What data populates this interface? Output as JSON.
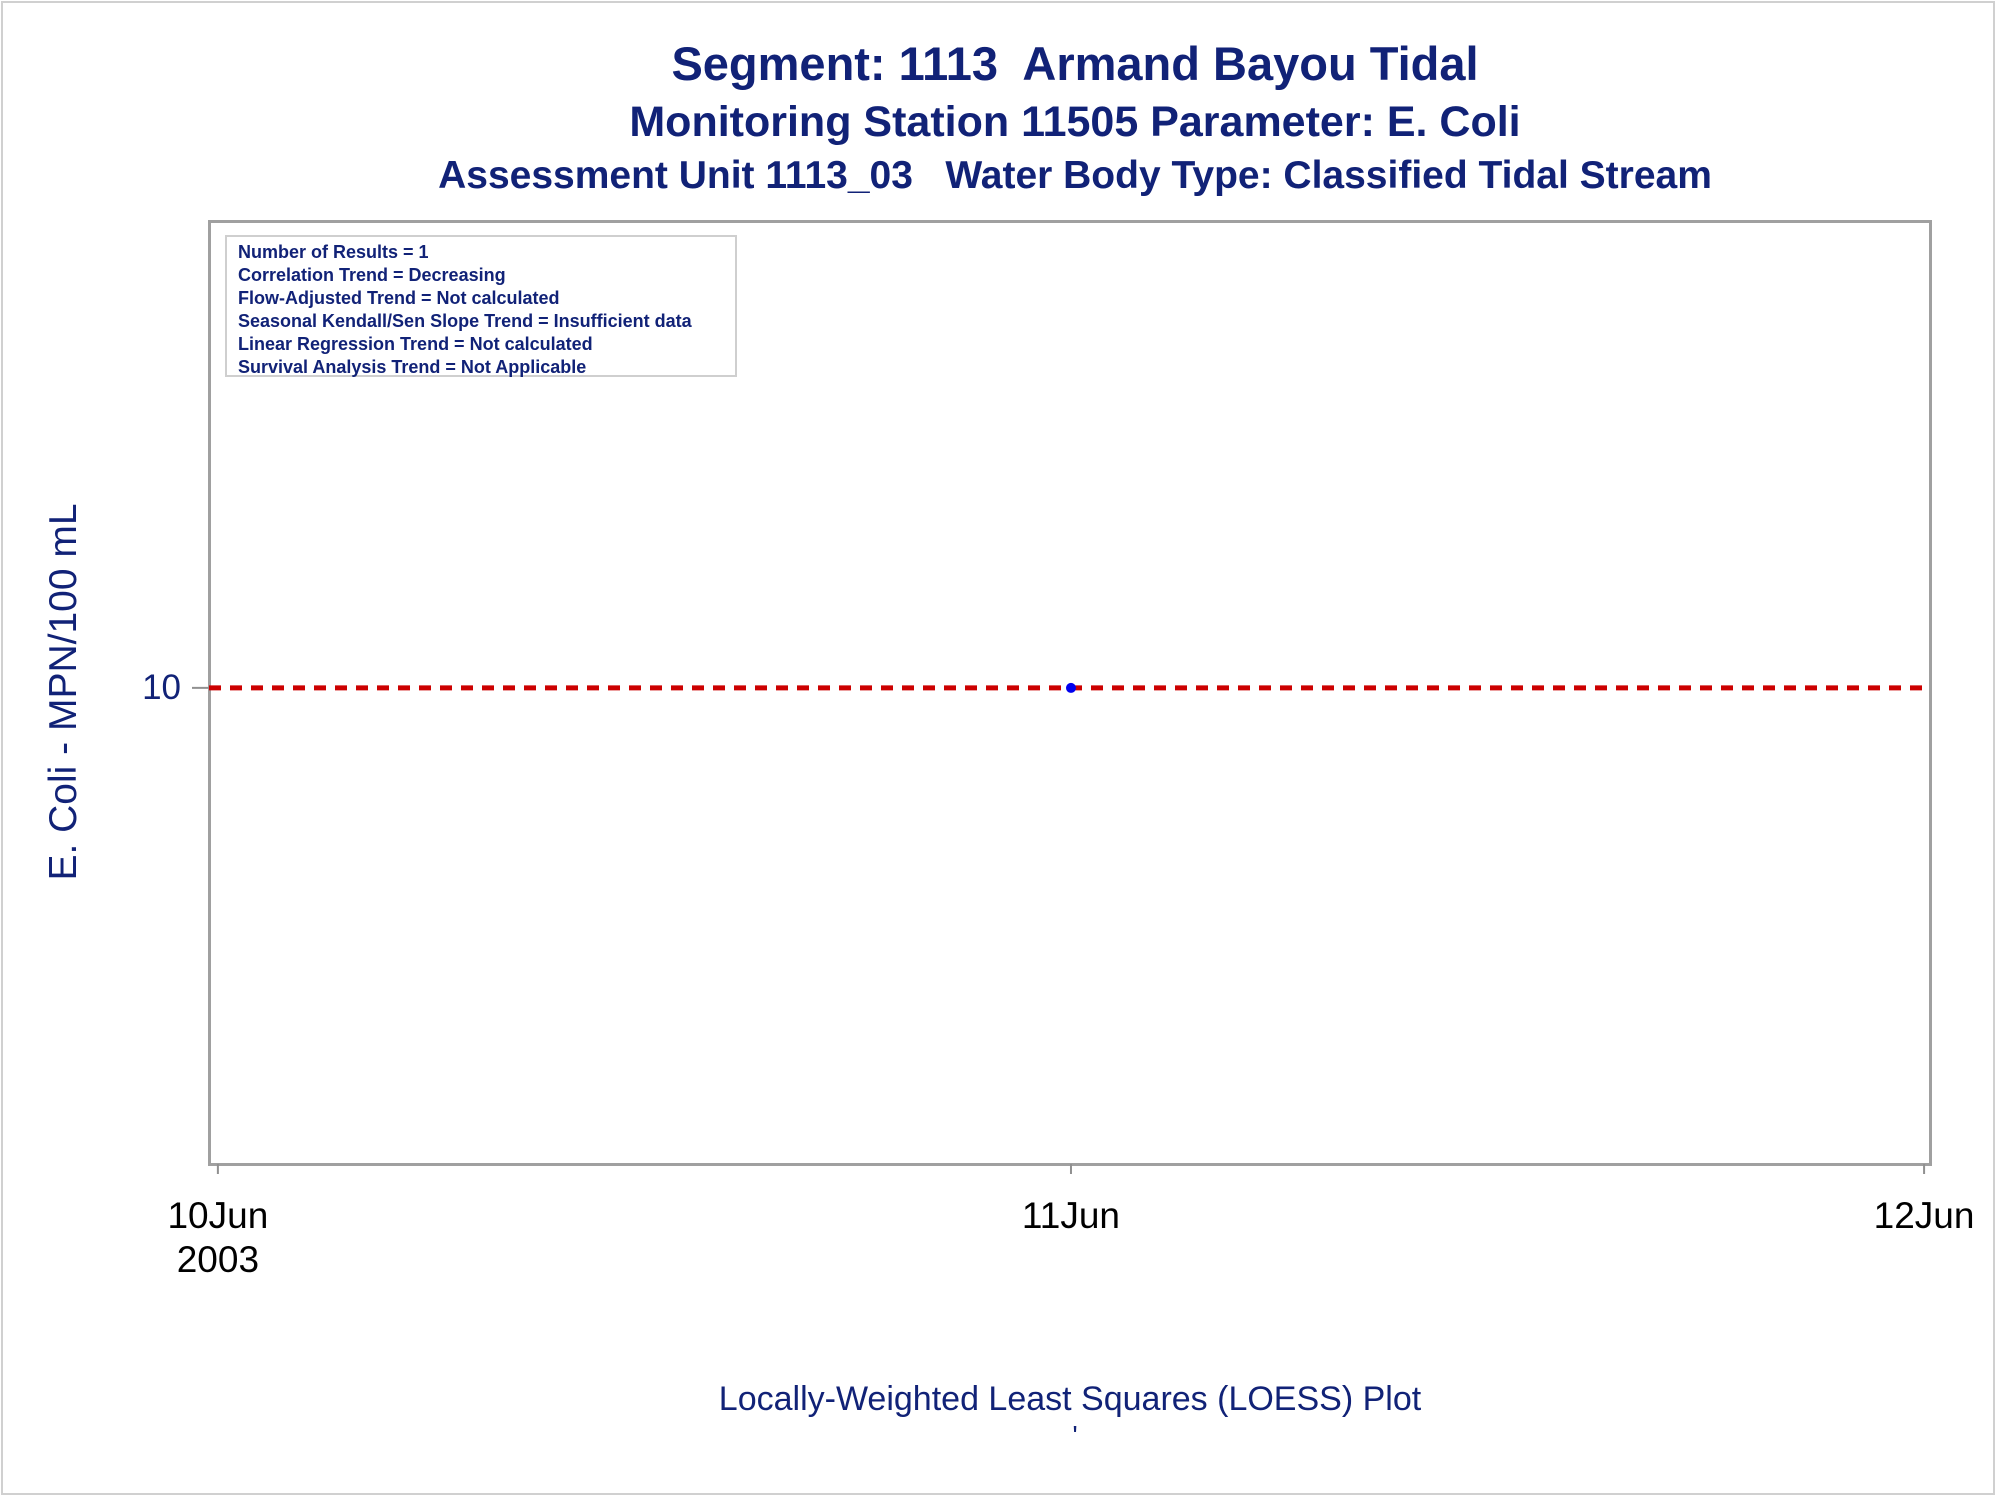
{
  "chart_data": {
    "type": "scatter",
    "title": "Segment: 1113  Armand Bayou Tidal",
    "subtitle": "Monitoring Station 11505 Parameter: E. Coli",
    "subtitle2": "Assessment Unit 1113_03   Water Body Type: Classified Tidal Stream",
    "ylabel": "E. Coli - MPN/100 mL",
    "xlabel": "",
    "footnote": "Locally-Weighted Least Squares (LOESS) Plot",
    "footnote_mark": "'",
    "y_scale": "log",
    "ylim": [
      3.5,
      28
    ],
    "xlim": [
      "2003-06-09T23:45",
      "2003-06-12T00:10"
    ],
    "x_ticks": [
      {
        "date": "2003-06-10",
        "label": "10Jun",
        "sublabel": "2003"
      },
      {
        "date": "2003-06-11",
        "label": "11Jun",
        "sublabel": ""
      },
      {
        "date": "2003-06-12",
        "label": "12Jun",
        "sublabel": ""
      }
    ],
    "y_ticks": [
      10
    ],
    "series": [
      {
        "points": [
          {
            "x": "2003-06-11",
            "y": 10
          }
        ],
        "color": "#0000ee"
      }
    ],
    "reference_line": {
      "y": 10,
      "style": "dashed",
      "color": "#cc0000"
    },
    "stats": [
      "Number of Results = 1",
      "Correlation Trend = Decreasing",
      "Flow-Adjusted Trend = Not calculated",
      "Seasonal Kendall/Sen Slope Trend = Insufficient data",
      "Linear Regression Trend = Not calculated",
      "Survival Analysis Trend = Not Applicable"
    ],
    "stats_placement": "top-left",
    "grid": false
  }
}
